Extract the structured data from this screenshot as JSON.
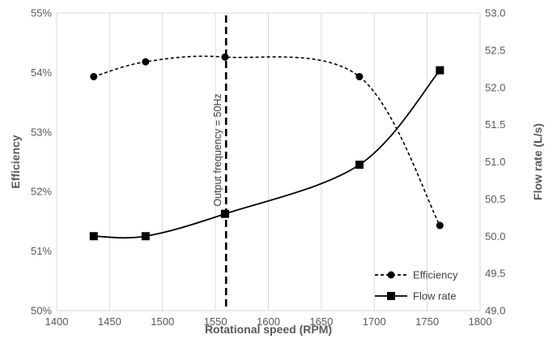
{
  "chart_data": {
    "type": "line",
    "xlabel": "Rotational speed (RPM)",
    "ylabel": "Efficiency",
    "y2label": "Flow rate (L/s)",
    "xlim": [
      1400,
      1800
    ],
    "ylim": [
      50,
      55
    ],
    "y2lim": [
      49.0,
      53.0
    ],
    "x_ticks": [
      "1400",
      "1450",
      "1500",
      "1550",
      "1600",
      "1650",
      "1700",
      "1750",
      "1800"
    ],
    "y_ticks": [
      "50%",
      "51%",
      "52%",
      "53%",
      "54%",
      "55%"
    ],
    "y2_ticks": [
      "49.0",
      "49.5",
      "50.0",
      "50.5",
      "51.0",
      "51.5",
      "52.0",
      "52.5",
      "53.0"
    ],
    "grid": "vertical",
    "legend_position": "bottom-right",
    "series": [
      {
        "name": "Efficiency",
        "axis": "left",
        "x": [
          1435,
          1484,
          1559,
          1686,
          1762
        ],
        "y": [
          53.93,
          54.18,
          54.26,
          53.93,
          51.43
        ],
        "line_style": "dashed",
        "marker": "circle",
        "color": "#000000"
      },
      {
        "name": "Flow rate",
        "axis": "right",
        "x": [
          1435,
          1484,
          1559,
          1686,
          1762
        ],
        "y": [
          50.0,
          50.0,
          50.3,
          50.96,
          52.23
        ],
        "line_style": "solid",
        "marker": "square",
        "color": "#000000"
      }
    ],
    "annotations": [
      {
        "text": "Output frequency = 50Hz",
        "x": 1560,
        "style": "dashed-vertical-line"
      }
    ]
  }
}
